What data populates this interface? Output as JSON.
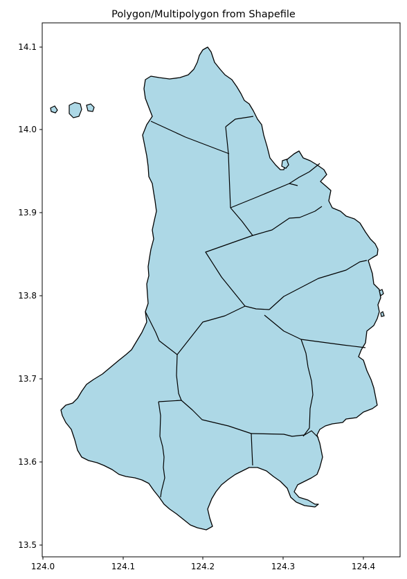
{
  "chart_data": {
    "type": "map",
    "title": "Polygon/Multipolygon from Shapefile",
    "xlabel": "",
    "ylabel": "",
    "xlim": [
      123.997,
      124.445
    ],
    "ylim": [
      13.492,
      14.128
    ],
    "x_ticks": [
      "124.0",
      "124.1",
      "124.2",
      "124.3",
      "124.4"
    ],
    "y_ticks": [
      "13.5",
      "13.6",
      "13.7",
      "13.8",
      "13.9",
      "14.0",
      "14.1"
    ],
    "grid": false,
    "fill_color": "#add8e6",
    "edge_color": "#000000"
  }
}
